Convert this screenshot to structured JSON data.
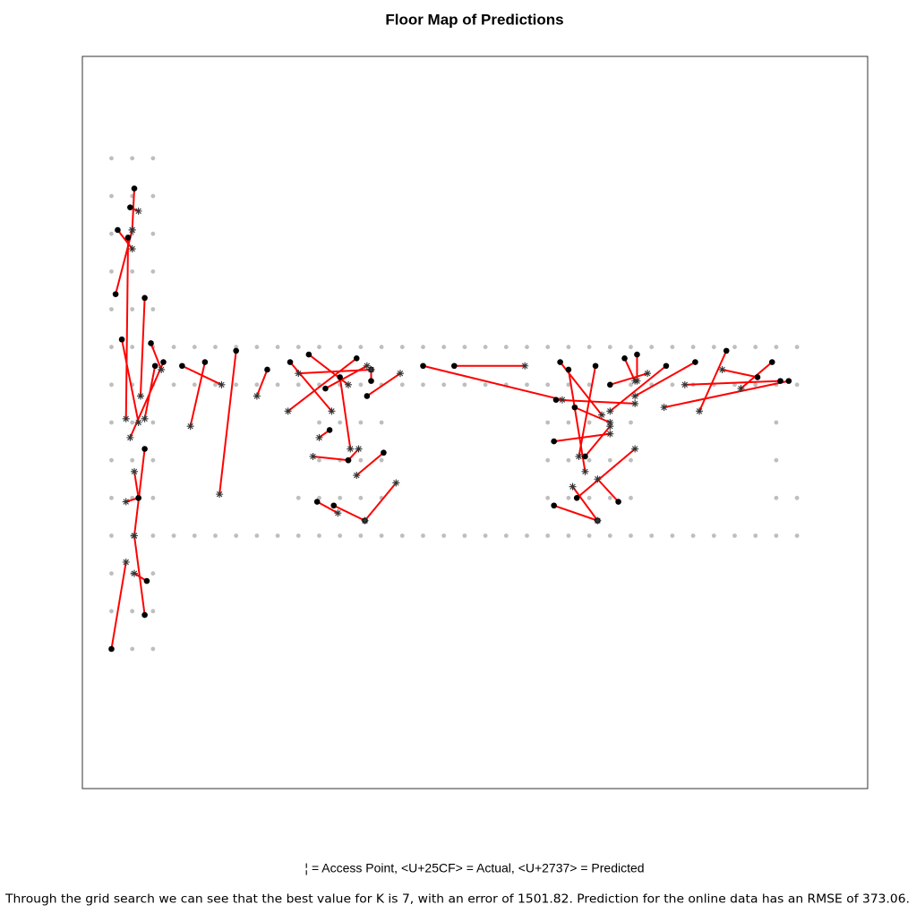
{
  "chart_data": {
    "type": "floor_map",
    "title": "Floor Map of Predictions",
    "legend_text": "¦ = Access Point, <U+25CF> = Actual, <U+2737> = Predicted",
    "caption": "Through the grid search we can see that the best value for K is 7, with an error of 1501.82. Prediction for the online data has an RMSE of 373.06.",
    "xlim": [
      -1.4,
      36.4
    ],
    "ylim": [
      -3.7,
      15.7
    ],
    "grid_color": "#bebebe",
    "line_color": "#ff0000",
    "actual_color": "#000000",
    "predicted_color": "#333333",
    "grid": [
      {
        "y": 13,
        "x": [
          0,
          1,
          2
        ]
      },
      {
        "y": 12,
        "x": [
          0,
          1,
          2
        ]
      },
      {
        "y": 11,
        "x": [
          0,
          1,
          2
        ]
      },
      {
        "y": 10,
        "x": [
          0,
          1,
          2
        ]
      },
      {
        "y": 9,
        "x": [
          0,
          1,
          2
        ]
      },
      {
        "y": 8,
        "x": [
          0,
          1,
          2,
          3,
          4,
          5,
          6,
          7,
          8,
          9,
          10,
          11,
          12,
          13,
          14,
          15,
          16,
          17,
          18,
          19,
          20,
          21,
          22,
          23,
          24,
          25,
          26,
          27,
          28,
          29,
          30,
          31,
          32,
          33
        ]
      },
      {
        "y": 7,
        "x": [
          0,
          1,
          2,
          3,
          4,
          5,
          6,
          7,
          8,
          9,
          10,
          11,
          12,
          13,
          14,
          15,
          16,
          17,
          18,
          19,
          20,
          21,
          22,
          23,
          24,
          25,
          26,
          27,
          28,
          29,
          30,
          31,
          32,
          33
        ]
      },
      {
        "y": 6,
        "x": [
          0,
          1,
          2,
          10,
          11,
          12,
          13,
          21,
          22,
          23,
          24,
          25,
          32
        ]
      },
      {
        "y": 5,
        "x": [
          0,
          1,
          2,
          10,
          11,
          12,
          13,
          21,
          22,
          23,
          24,
          25,
          32
        ]
      },
      {
        "y": 4,
        "x": [
          0,
          1,
          2,
          9,
          10,
          11,
          12,
          13,
          21,
          22,
          23,
          24,
          25,
          32,
          33
        ]
      },
      {
        "y": 3,
        "x": [
          0,
          1,
          2,
          3,
          4,
          5,
          6,
          7,
          8,
          9,
          10,
          11,
          12,
          13,
          14,
          15,
          16,
          17,
          18,
          19,
          20,
          21,
          22,
          23,
          24,
          25,
          26,
          27,
          28,
          29,
          30,
          31,
          32,
          33
        ]
      },
      {
        "y": 2,
        "x": [
          0,
          1,
          2
        ]
      },
      {
        "y": 1,
        "x": [
          0,
          1,
          2
        ]
      },
      {
        "y": 0,
        "x": [
          0,
          1,
          2
        ]
      }
    ],
    "actual": {
      "x": [
        1.1,
        0.9,
        0.3,
        0.8,
        0.2,
        1.6,
        0.5,
        1.9,
        2.5,
        2.1,
        1.6,
        1.3,
        1.6,
        1.7,
        0.0,
        1.3,
        3.4,
        4.5,
        6.0,
        7.5,
        8.6,
        9.5,
        11.8,
        12.5,
        10.3,
        11.0,
        12.3,
        12.5,
        10.5,
        11.4,
        11.4,
        13.1,
        12.2,
        9.9,
        10.7,
        15.0,
        16.5,
        21.6,
        22.0,
        23.3,
        22.3,
        24.7,
        25.3,
        24.0,
        21.4,
        26.7,
        28.1,
        29.6,
        31.8,
        31.1,
        32.6,
        32.2,
        22.8,
        21.3,
        24.4,
        22.4,
        21.3,
        23.4
      ],
      "y": [
        12.2,
        11.7,
        11.1,
        10.9,
        9.4,
        9.3,
        8.2,
        8.1,
        7.6,
        7.5,
        5.3,
        4.0,
        0.9,
        1.8,
        0.0,
        4.0,
        7.5,
        7.6,
        7.9,
        7.4,
        7.6,
        7.8,
        7.7,
        7.4,
        6.9,
        7.2,
        6.7,
        7.1,
        5.8,
        5.0,
        5.0,
        5.2,
        3.4,
        3.9,
        3.8,
        7.5,
        7.5,
        7.6,
        7.4,
        7.5,
        6.4,
        7.7,
        7.8,
        7.0,
        6.6,
        7.5,
        7.6,
        7.9,
        7.6,
        7.2,
        7.1,
        7.1,
        5.1,
        5.5,
        3.9,
        4.0,
        3.8,
        3.4
      ]
    },
    "predicted": {
      "x": [
        1.0,
        1.3,
        1.0,
        0.7,
        1.0,
        1.4,
        1.3,
        2.4,
        0.9,
        1.6,
        1.1,
        1.1,
        1.1,
        1.1,
        0.7,
        0.7,
        5.3,
        3.8,
        5.2,
        7.0,
        10.6,
        11.4,
        8.5,
        9.0,
        12.3,
        11.5,
        13.9,
        12.5,
        10.0,
        11.9,
        9.7,
        11.8,
        13.7,
        10.9,
        12.2,
        21.7,
        19.9,
        23.6,
        22.8,
        22.5,
        24.0,
        25.2,
        25.3,
        25.8,
        25.2,
        24.0,
        25.2,
        28.3,
        30.3,
        29.4,
        26.6,
        27.6,
        24.0,
        24.0,
        23.4,
        25.2,
        23.4,
        22.2
      ],
      "y": [
        11.1,
        11.6,
        10.6,
        6.1,
        11.1,
        6.7,
        6.0,
        7.4,
        5.6,
        6.1,
        3.0,
        4.7,
        3.0,
        2.0,
        2.3,
        3.9,
        7.0,
        5.9,
        4.1,
        6.7,
        6.3,
        7.0,
        6.3,
        7.3,
        7.5,
        5.3,
        7.3,
        7.4,
        5.6,
        5.3,
        5.1,
        4.6,
        4.4,
        3.6,
        3.4,
        6.6,
        7.5,
        6.2,
        4.7,
        5.1,
        6.0,
        7.1,
        7.1,
        7.3,
        6.5,
        6.3,
        6.7,
        6.3,
        6.9,
        7.4,
        6.4,
        7.0,
        5.9,
        5.7,
        4.5,
        5.3,
        3.4,
        4.3
      ]
    }
  }
}
